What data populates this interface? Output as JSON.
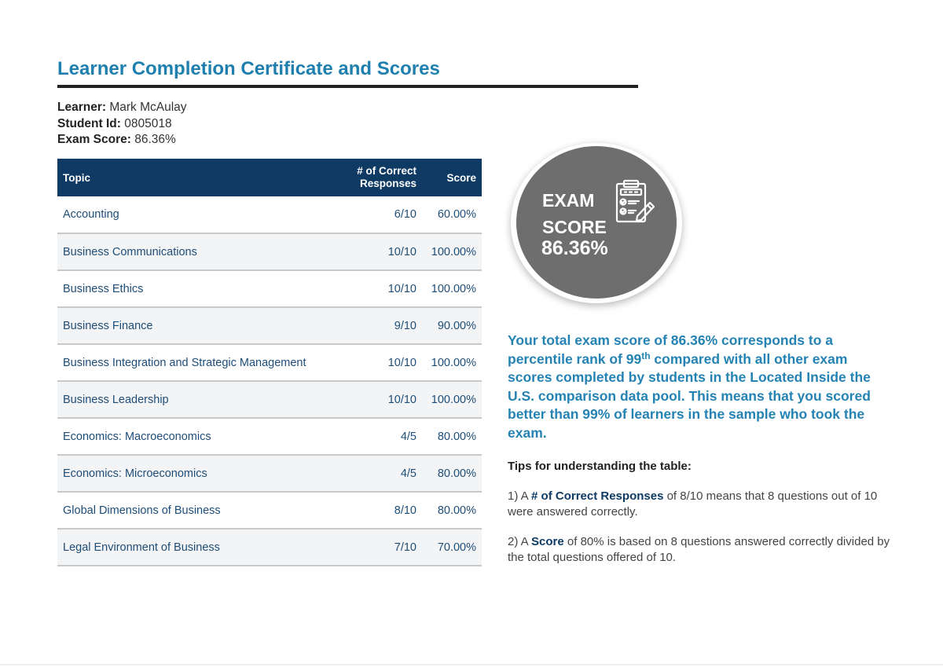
{
  "document": {
    "title": "Learner Completion Certificate and Scores"
  },
  "learner": {
    "learner_label": "Learner:",
    "learner_value": "Mark McAulay",
    "student_id_label": "Student Id:",
    "student_id_value": "0805018",
    "exam_score_label": "Exam Score:",
    "exam_score_value": "86.36%"
  },
  "table": {
    "headers": {
      "topic": "Topic",
      "responses_line1": "# of Correct",
      "responses_line2": "Responses",
      "score": "Score"
    },
    "rows": [
      {
        "topic": "Accounting",
        "responses": "6/10",
        "score": "60.00%"
      },
      {
        "topic": "Business Communications",
        "responses": "10/10",
        "score": "100.00%"
      },
      {
        "topic": "Business Ethics",
        "responses": "10/10",
        "score": "100.00%"
      },
      {
        "topic": "Business Finance",
        "responses": "9/10",
        "score": "90.00%"
      },
      {
        "topic": "Business Integration and Strategic Management",
        "responses": "10/10",
        "score": "100.00%"
      },
      {
        "topic": "Business Leadership",
        "responses": "10/10",
        "score": "100.00%"
      },
      {
        "topic": "Economics: Macroeconomics",
        "responses": "4/5",
        "score": "80.00%"
      },
      {
        "topic": "Economics: Microeconomics",
        "responses": "4/5",
        "score": "80.00%"
      },
      {
        "topic": "Global Dimensions of Business",
        "responses": "8/10",
        "score": "80.00%"
      },
      {
        "topic": "Legal Environment of Business",
        "responses": "7/10",
        "score": "70.00%"
      }
    ]
  },
  "badge": {
    "line1": "EXAM",
    "line2": "SCORE",
    "value": "86.36%",
    "icon": "clipboard-checklist-icon"
  },
  "summary": {
    "part1": "Your total exam score of 86.36% corresponds to a percentile rank of 99",
    "sup": "th",
    "part2": " compared with all other exam scores completed by students in the Located Inside the U.S. comparison data pool. This means that you scored better than 99% of learners in the sample who took the exam."
  },
  "tips": {
    "title": "Tips for understanding the table:",
    "tip1_prefix": "1) A ",
    "tip1_highlight": "# of Correct Responses",
    "tip1_suffix": " of 8/10 means that 8 questions out of 10 were answered correctly.",
    "tip2_prefix": "2) A ",
    "tip2_highlight": "Score",
    "tip2_suffix": " of 80% is based on 8 questions answered correctly divided by the total questions offered of 10."
  },
  "colors": {
    "title": "#1f7fae",
    "table_header": "#0e3a63",
    "badge": "#6e6e6e",
    "summary_text": "#2583b4"
  }
}
